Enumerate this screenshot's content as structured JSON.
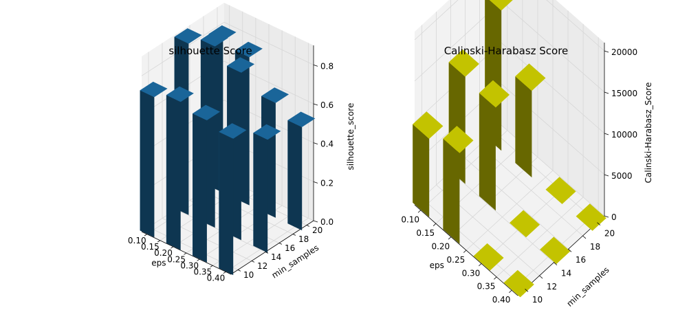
{
  "chart_data": [
    {
      "type": "bar3d",
      "title": "silhouette Score",
      "xlabel": "eps",
      "ylabel": "min_samples",
      "zlabel": "silhouette_score",
      "x_ticks": [
        "0.10",
        "0.15",
        "0.20",
        "0.25",
        "0.30",
        "0.35",
        "0.40"
      ],
      "y_ticks": [
        "10",
        "12",
        "14",
        "16",
        "18",
        "20"
      ],
      "z_ticks": [
        "0.0",
        "0.2",
        "0.4",
        "0.6",
        "0.8"
      ],
      "eps_values": [
        0.1,
        0.2,
        0.3,
        0.4
      ],
      "min_samples_values": [
        10,
        15,
        20
      ],
      "zlim": [
        0,
        0.9
      ],
      "grid": true,
      "color": "#1f77b4",
      "bars": [
        {
          "eps": 0.1,
          "min_samples": 10,
          "value": 0.72
        },
        {
          "eps": 0.1,
          "min_samples": 15,
          "value": 0.88
        },
        {
          "eps": 0.1,
          "min_samples": 20,
          "value": 0.78
        },
        {
          "eps": 0.2,
          "min_samples": 10,
          "value": 0.76
        },
        {
          "eps": 0.2,
          "min_samples": 15,
          "value": 0.93
        },
        {
          "eps": 0.2,
          "min_samples": 20,
          "value": 0.76
        },
        {
          "eps": 0.3,
          "min_samples": 10,
          "value": 0.73
        },
        {
          "eps": 0.3,
          "min_samples": 15,
          "value": 0.86
        },
        {
          "eps": 0.3,
          "min_samples": 20,
          "value": 0.59
        },
        {
          "eps": 0.4,
          "min_samples": 10,
          "value": 0.7
        },
        {
          "eps": 0.4,
          "min_samples": 15,
          "value": 0.58
        },
        {
          "eps": 0.4,
          "min_samples": 20,
          "value": 0.53
        }
      ]
    },
    {
      "type": "bar3d",
      "title": "Calinski-Harabasz Score",
      "xlabel": "eps",
      "ylabel": "min_samples",
      "zlabel": "Calinski-Harabasz_Score",
      "x_ticks": [
        "0.10",
        "0.15",
        "0.20",
        "0.25",
        "0.30",
        "0.35",
        "0.40"
      ],
      "y_ticks": [
        "10",
        "12",
        "14",
        "16",
        "18",
        "20"
      ],
      "z_ticks": [
        "0",
        "5000",
        "10000",
        "15000",
        "20000"
      ],
      "eps_values": [
        0.1,
        0.2,
        0.3,
        0.4
      ],
      "min_samples_values": [
        10,
        15,
        20
      ],
      "zlim": [
        0,
        21000
      ],
      "grid": true,
      "color": "#e5e500",
      "bars": [
        {
          "eps": 0.1,
          "min_samples": 10,
          "value": 9500
        },
        {
          "eps": 0.1,
          "min_samples": 15,
          "value": 13000
        },
        {
          "eps": 0.1,
          "min_samples": 20,
          "value": 17000
        },
        {
          "eps": 0.2,
          "min_samples": 10,
          "value": 11000
        },
        {
          "eps": 0.2,
          "min_samples": 15,
          "value": 12500
        },
        {
          "eps": 0.2,
          "min_samples": 20,
          "value": 10500
        },
        {
          "eps": 0.3,
          "min_samples": 10,
          "value": 0
        },
        {
          "eps": 0.3,
          "min_samples": 15,
          "value": 0
        },
        {
          "eps": 0.3,
          "min_samples": 20,
          "value": 0
        },
        {
          "eps": 0.4,
          "min_samples": 10,
          "value": 0
        },
        {
          "eps": 0.4,
          "min_samples": 15,
          "value": 0
        },
        {
          "eps": 0.4,
          "min_samples": 20,
          "value": 0
        }
      ]
    }
  ]
}
